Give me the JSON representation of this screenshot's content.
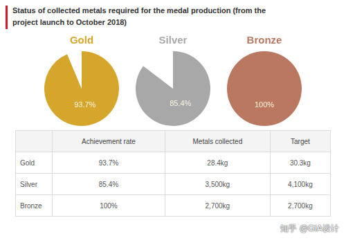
{
  "header": {
    "title_lines": [
      "Status of collected metals required for the medal production (from the",
      "project launch to October 2018)"
    ]
  },
  "chart_data": [
    {
      "type": "pie",
      "title": "Gold",
      "values": [
        93.7,
        6.3
      ],
      "value_labels": [
        "93.7%",
        null
      ],
      "colors": [
        "#d6a62c",
        "#ffffff"
      ],
      "data_labels": true
    },
    {
      "type": "pie",
      "title": "Silver",
      "values": [
        85.4,
        14.6
      ],
      "value_labels": [
        "85.4%",
        null
      ],
      "colors": [
        "#a8a8a8",
        "#ffffff"
      ],
      "data_labels": true
    },
    {
      "type": "pie",
      "title": "Bronze",
      "values": [
        100
      ],
      "value_labels": [
        "100%"
      ],
      "colors": [
        "#b9785f"
      ],
      "data_labels": true
    }
  ],
  "table": {
    "header": [
      null,
      "Achievement rate",
      "Metals collected",
      "Target"
    ],
    "rows": [
      [
        "Gold",
        "93.7%",
        "28.4kg",
        "30.3kg"
      ],
      [
        "Silver",
        "85.4%",
        "3,500kg",
        "4,100kg"
      ],
      [
        "Bronze",
        "100%",
        "2,700kg",
        "2,700kg"
      ]
    ]
  },
  "watermark": "知乎 @GIA设计"
}
